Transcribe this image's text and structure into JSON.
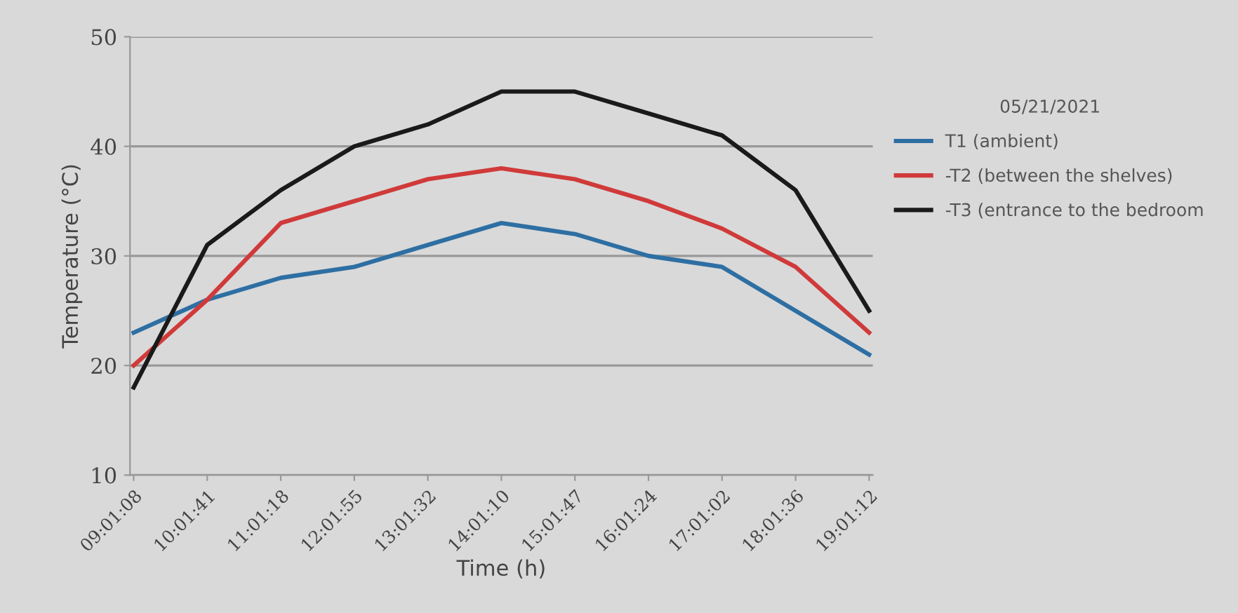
{
  "chart_data": {
    "type": "line",
    "xlabel": "Time (h)",
    "ylabel": "Temperature (°C)",
    "legend_title": "05/21/2021",
    "categories": [
      "09:01:08",
      "10:01:41",
      "11:01:18",
      "12:01:55",
      "13:01:32",
      "14:01:10",
      "15:01:47",
      "16:01:24",
      "17:01:02",
      "18:01:36",
      "19:01:12"
    ],
    "series": [
      {
        "name": "T1 (ambient)",
        "color": "#2e6fa3",
        "values": [
          23,
          26,
          28,
          29,
          31,
          33,
          32,
          30,
          29,
          25,
          21
        ]
      },
      {
        "name": "-T2 (between the shelves)",
        "color": "#d03a3a",
        "values": [
          20,
          26,
          33,
          35,
          37,
          38,
          37,
          35,
          32.5,
          29,
          23
        ]
      },
      {
        "name": "-T3 (entrance to the bedroom",
        "color": "#1a1a1a",
        "values": [
          18,
          31,
          36,
          40,
          42,
          45,
          45,
          43,
          41,
          36,
          25
        ]
      }
    ],
    "ylim": [
      10,
      50
    ],
    "yticks": [
      10,
      20,
      30,
      40,
      50
    ],
    "grid": "y",
    "legend": "right",
    "marker": "none",
    "line_style": "solid"
  }
}
